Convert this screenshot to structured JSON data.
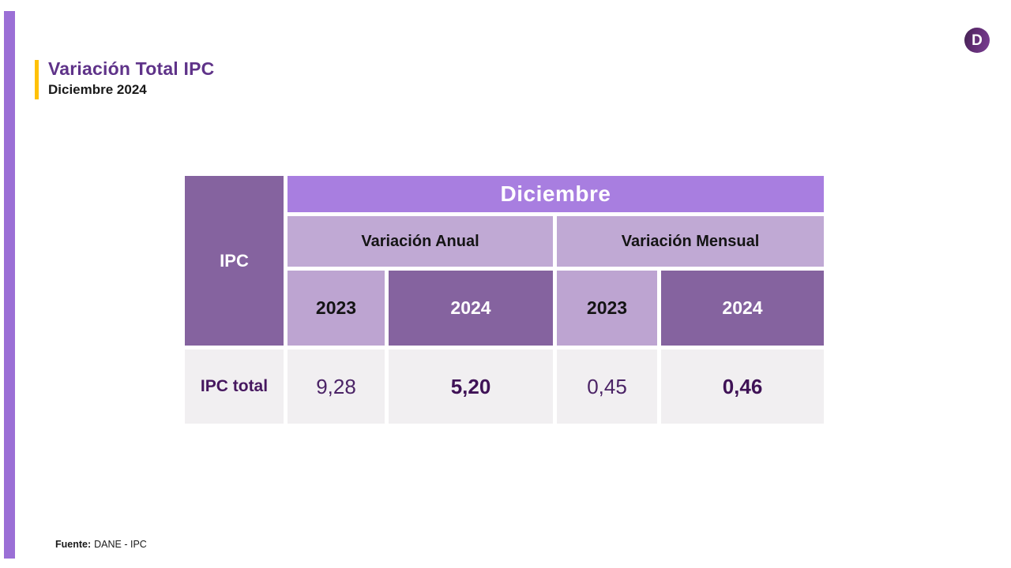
{
  "page": {
    "title": "Variación Total IPC",
    "subtitle": "Diciembre 2024",
    "logo_letter": "D"
  },
  "table": {
    "corner_label": "IPC",
    "month_header": "Diciembre",
    "group_headers": {
      "anual": "Variación Anual",
      "mensual": "Variación Mensual"
    },
    "year_headers": [
      "2023",
      "2024",
      "2023",
      "2024"
    ],
    "row": {
      "label": "IPC total",
      "values": [
        "9,28",
        "5,20",
        "0,45",
        "0,46"
      ]
    }
  },
  "footer": {
    "source_label": "Fuente:",
    "source_value": "DANE - IPC"
  },
  "colors": {
    "accent_bar": "#9b6fd6",
    "title_rule_yellow": "#ffc107",
    "title_purple": "#5f3389",
    "month_header_bg": "#a87ee0",
    "group_header_bg": "#c0a9d4",
    "year_light_bg": "#bda4d1",
    "year_dark_bg": "#85639f",
    "data_row_bg": "#f1eff1",
    "value_text": "#4b2366"
  },
  "chart_data": {
    "type": "table",
    "title": "Variación Total IPC — Diciembre 2024",
    "columns": [
      "IPC",
      "Variación Anual 2023",
      "Variación Anual 2024",
      "Variación Mensual 2023",
      "Variación Mensual 2024"
    ],
    "rows": [
      [
        "IPC total",
        9.28,
        5.2,
        0.45,
        0.46
      ]
    ],
    "source": "DANE - IPC"
  }
}
